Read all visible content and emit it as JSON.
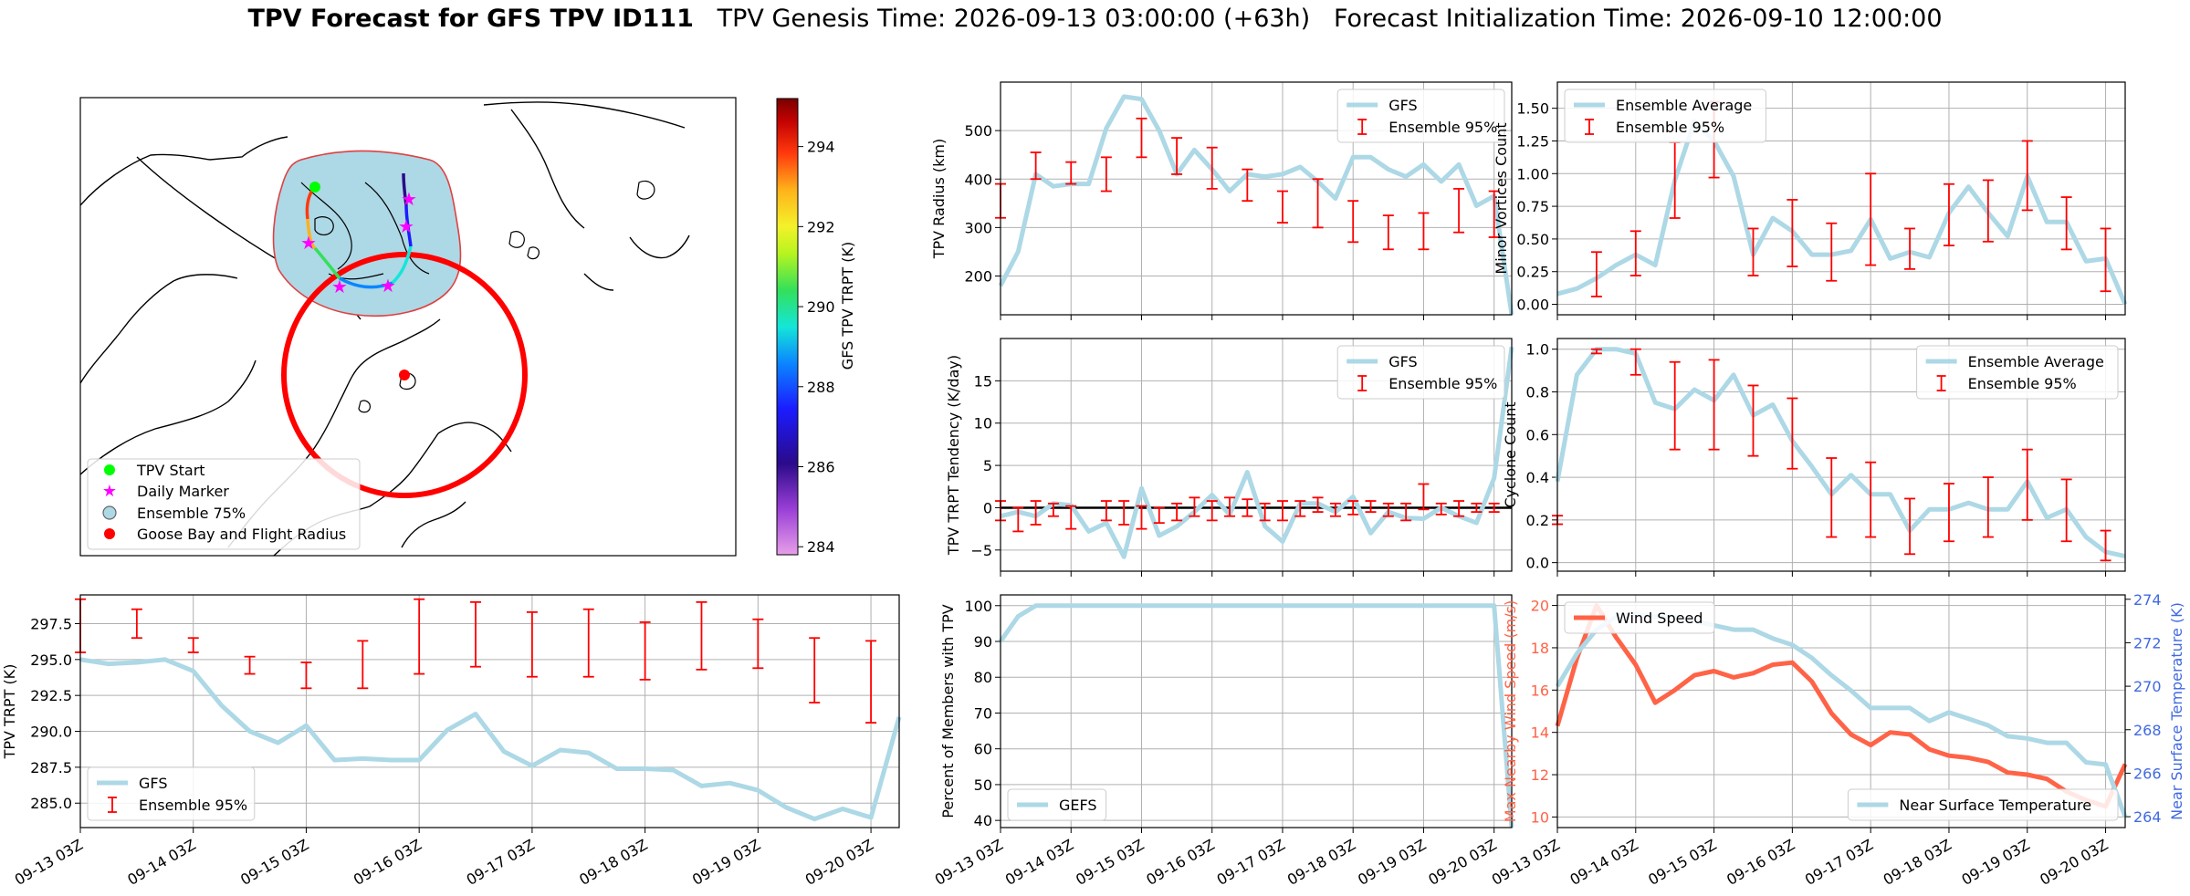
{
  "title": {
    "bold": "TPV Forecast for GFS TPV ID111",
    "genesis": "TPV Genesis Time: 2026-09-13 03:00:00 (+63h)",
    "init": "Forecast Initialization Time: 2026-09-10 12:00:00"
  },
  "colors": {
    "gfs": "#add8e6",
    "err": "#ff0000",
    "wind": "#ff6347",
    "tempAxis": "#4169e1",
    "zero": "#000000"
  },
  "map": {
    "legend": [
      "TPV Start",
      "Daily Marker",
      "Ensemble 75%",
      "Goose Bay and Flight Radius"
    ],
    "colorbar": {
      "label": "GFS TPV TRPT (K)",
      "ticks": [
        "284",
        "286",
        "288",
        "290",
        "292",
        "294"
      ],
      "min": 283.8,
      "max": 295.2,
      "colormap": "gist_ncar-like"
    }
  },
  "time_axis": {
    "tick_labels": [
      "09-13 03Z",
      "09-14 03Z",
      "09-15 03Z",
      "09-16 03Z",
      "09-17 03Z",
      "09-18 03Z",
      "09-19 03Z",
      "09-20 03Z"
    ],
    "step_hours": 6
  },
  "chart_data": [
    {
      "id": "trpt",
      "type": "line",
      "ylabel": "TPV TRPT (K)",
      "ylim": [
        283.3,
        299.5
      ],
      "yticks": [
        "285.0",
        "287.5",
        "290.0",
        "292.5",
        "295.0",
        "297.5"
      ],
      "ytick_values": [
        285,
        287.5,
        290,
        292.5,
        295,
        297.5
      ],
      "legend": [
        "GFS",
        "Ensemble 95%"
      ],
      "legend_loc": "lower left",
      "series": [
        {
          "name": "GFS",
          "values": [
            295.0,
            294.7,
            294.8,
            295.0,
            294.2,
            291.8,
            290.0,
            289.2,
            290.4,
            288.0,
            288.1,
            288.0,
            288.0,
            290.1,
            291.2,
            288.6,
            287.6,
            288.7,
            288.5,
            287.4,
            287.4,
            287.3,
            286.2,
            286.4,
            285.9,
            284.7,
            283.9,
            284.6,
            284.0,
            291.0
          ]
        }
      ],
      "errorbars": [
        [
          0,
          295.5,
          299.2
        ],
        [
          2,
          296.5,
          298.5
        ],
        [
          4,
          295.5,
          296.5
        ],
        [
          6,
          294.0,
          295.2
        ],
        [
          8,
          293.0,
          294.8
        ],
        [
          10,
          293.0,
          296.3
        ],
        [
          12,
          294.0,
          299.2
        ],
        [
          14,
          294.5,
          299.0
        ],
        [
          16,
          293.8,
          298.3
        ],
        [
          18,
          293.8,
          298.5
        ],
        [
          20,
          293.6,
          297.6
        ],
        [
          22,
          294.3,
          299.0
        ],
        [
          24,
          294.4,
          297.8
        ],
        [
          26,
          292.0,
          296.5
        ],
        [
          28,
          290.6,
          296.3
        ]
      ]
    },
    {
      "id": "radius",
      "type": "line",
      "ylabel": "TPV Radius (km)",
      "ylim": [
        120,
        600
      ],
      "yticks": [
        "200",
        "300",
        "400",
        "500"
      ],
      "ytick_values": [
        200,
        300,
        400,
        500
      ],
      "legend": [
        "GFS",
        "Ensemble 95%"
      ],
      "legend_loc": "upper right",
      "series": [
        {
          "name": "GFS",
          "values": [
            180,
            250,
            410,
            385,
            390,
            390,
            505,
            570,
            565,
            500,
            410,
            460,
            420,
            375,
            410,
            405,
            410,
            425,
            395,
            360,
            445,
            445,
            420,
            405,
            430,
            395,
            430,
            345,
            365,
            120
          ]
        }
      ],
      "errorbars": [
        [
          0,
          320,
          390
        ],
        [
          2,
          400,
          455
        ],
        [
          4,
          390,
          435
        ],
        [
          6,
          375,
          445
        ],
        [
          8,
          445,
          525
        ],
        [
          10,
          410,
          485
        ],
        [
          12,
          380,
          465
        ],
        [
          14,
          355,
          420
        ],
        [
          16,
          310,
          375
        ],
        [
          18,
          300,
          400
        ],
        [
          20,
          270,
          355
        ],
        [
          22,
          255,
          325
        ],
        [
          24,
          255,
          330
        ],
        [
          26,
          290,
          380
        ],
        [
          28,
          280,
          375
        ]
      ]
    },
    {
      "id": "minor",
      "type": "line",
      "ylabel": "Minor Vortices Count",
      "ylim": [
        -0.08,
        1.7
      ],
      "yticks": [
        "0.00",
        "0.25",
        "0.50",
        "0.75",
        "1.00",
        "1.25",
        "1.50"
      ],
      "ytick_values": [
        0,
        0.25,
        0.5,
        0.75,
        1.0,
        1.25,
        1.5
      ],
      "legend": [
        "Ensemble Average",
        "Ensemble 95%"
      ],
      "legend_loc": "upper left",
      "series": [
        {
          "name": "Ensemble Average",
          "values": [
            0.08,
            0.12,
            0.2,
            0.3,
            0.38,
            0.3,
            0.95,
            1.4,
            1.25,
            0.98,
            0.38,
            0.66,
            0.56,
            0.38,
            0.38,
            0.41,
            0.65,
            0.35,
            0.4,
            0.36,
            0.7,
            0.9,
            0.7,
            0.52,
            0.98,
            0.63,
            0.63,
            0.33,
            0.35,
            0.0
          ]
        }
      ],
      "errorbars": [
        [
          2,
          0.06,
          0.4
        ],
        [
          4,
          0.22,
          0.56
        ],
        [
          6,
          0.66,
          1.24
        ],
        [
          8,
          0.97,
          1.55
        ],
        [
          10,
          0.22,
          0.58
        ],
        [
          12,
          0.29,
          0.8
        ],
        [
          14,
          0.18,
          0.62
        ],
        [
          16,
          0.3,
          1.0
        ],
        [
          18,
          0.27,
          0.58
        ],
        [
          20,
          0.45,
          0.92
        ],
        [
          22,
          0.48,
          0.95
        ],
        [
          24,
          0.72,
          1.25
        ],
        [
          26,
          0.42,
          0.82
        ],
        [
          28,
          0.1,
          0.58
        ]
      ]
    },
    {
      "id": "tendency",
      "type": "line",
      "ylabel": "TPV TRPT Tendency (K/day)",
      "ylim": [
        -7.5,
        20
      ],
      "yticks": [
        "−5",
        "0",
        "5",
        "10",
        "15"
      ],
      "ytick_values": [
        -5,
        0,
        5,
        10,
        15
      ],
      "legend": [
        "GFS",
        "Ensemble 95%"
      ],
      "legend_loc": "upper right",
      "series": [
        {
          "name": "GFS",
          "values": [
            -1.0,
            -0.5,
            -1.0,
            0.5,
            0.3,
            -2.8,
            -1.8,
            -5.8,
            2.3,
            -3.3,
            -2.2,
            -0.5,
            1.5,
            -0.8,
            4.2,
            -2.2,
            -4.0,
            0.5,
            0.5,
            -0.5,
            1.3,
            -3.0,
            -0.5,
            -1.2,
            -1.3,
            0.0,
            -1.0,
            -1.8,
            3.5,
            19.0
          ]
        }
      ],
      "errorbars": [
        [
          0,
          -1.5,
          0.8
        ],
        [
          1,
          -2.8,
          0.0
        ],
        [
          2,
          -2.0,
          0.8
        ],
        [
          3,
          -1.0,
          0.5
        ],
        [
          4,
          -2.5,
          0.2
        ],
        [
          6,
          -1.5,
          0.8
        ],
        [
          7,
          -2.0,
          0.8
        ],
        [
          8,
          -2.5,
          0.2
        ],
        [
          9,
          -1.8,
          0.0
        ],
        [
          10,
          -1.5,
          0.5
        ],
        [
          11,
          -1.0,
          1.2
        ],
        [
          12,
          -1.5,
          0.8
        ],
        [
          13,
          -1.0,
          1.2
        ],
        [
          14,
          -1.0,
          1.0
        ],
        [
          15,
          -1.5,
          0.5
        ],
        [
          16,
          -1.5,
          0.8
        ],
        [
          17,
          -1.0,
          0.8
        ],
        [
          18,
          -0.5,
          1.2
        ],
        [
          19,
          -1.0,
          0.5
        ],
        [
          20,
          -0.8,
          0.8
        ],
        [
          21,
          -0.5,
          0.8
        ],
        [
          22,
          -1.0,
          0.5
        ],
        [
          23,
          -1.5,
          0.5
        ],
        [
          24,
          -0.2,
          2.8
        ],
        [
          25,
          -0.8,
          0.5
        ],
        [
          26,
          -1.0,
          0.8
        ],
        [
          27,
          -0.5,
          0.5
        ],
        [
          28,
          -0.5,
          0.5
        ]
      ]
    },
    {
      "id": "cyclone",
      "type": "line",
      "ylabel": "Cyclone Count",
      "ylim": [
        -0.04,
        1.05
      ],
      "yticks": [
        "0.0",
        "0.2",
        "0.4",
        "0.6",
        "0.8",
        "1.0"
      ],
      "ytick_values": [
        0,
        0.2,
        0.4,
        0.6,
        0.8,
        1.0
      ],
      "legend": [
        "Ensemble Average",
        "Ensemble 95%"
      ],
      "legend_loc": "upper right",
      "series": [
        {
          "name": "Ensemble Average",
          "values": [
            0.38,
            0.88,
            1.0,
            1.0,
            0.98,
            0.75,
            0.72,
            0.81,
            0.76,
            0.88,
            0.69,
            0.74,
            0.57,
            0.45,
            0.32,
            0.41,
            0.32,
            0.32,
            0.15,
            0.25,
            0.25,
            0.28,
            0.25,
            0.25,
            0.38,
            0.21,
            0.25,
            0.12,
            0.05,
            0.03
          ]
        }
      ],
      "errorbars": [
        [
          0,
          0.18,
          0.22
        ],
        [
          2,
          0.98,
          1.0
        ],
        [
          4,
          0.88,
          1.0
        ],
        [
          6,
          0.53,
          0.94
        ],
        [
          8,
          0.53,
          0.95
        ],
        [
          10,
          0.5,
          0.83
        ],
        [
          12,
          0.44,
          0.77
        ],
        [
          14,
          0.12,
          0.49
        ],
        [
          16,
          0.12,
          0.47
        ],
        [
          18,
          0.04,
          0.3
        ],
        [
          20,
          0.1,
          0.37
        ],
        [
          22,
          0.12,
          0.4
        ],
        [
          24,
          0.2,
          0.53
        ],
        [
          26,
          0.1,
          0.39
        ],
        [
          28,
          0.01,
          0.15
        ]
      ]
    },
    {
      "id": "percent",
      "type": "line",
      "ylabel": "Percent of Members with TPV",
      "ylim": [
        38,
        103
      ],
      "yticks": [
        "40",
        "50",
        "60",
        "70",
        "80",
        "90",
        "100"
      ],
      "ytick_values": [
        40,
        50,
        60,
        70,
        80,
        90,
        100
      ],
      "legend": [
        "GEFS"
      ],
      "legend_loc": "lower left",
      "series": [
        {
          "name": "GEFS",
          "values": [
            90,
            97,
            100,
            100,
            100,
            100,
            100,
            100,
            100,
            100,
            100,
            100,
            100,
            100,
            100,
            100,
            100,
            100,
            100,
            100,
            100,
            100,
            100,
            100,
            100,
            100,
            100,
            100,
            100,
            38
          ]
        }
      ]
    },
    {
      "id": "wind_temp",
      "type": "line",
      "ylabel": "Max Nearby Wind Speed (m/s)",
      "ylim": [
        9.5,
        20.5
      ],
      "yticks": [
        "10",
        "12",
        "14",
        "16",
        "18",
        "20"
      ],
      "ytick_values": [
        10,
        12,
        14,
        16,
        18,
        20
      ],
      "ylabel2": "Near Surface Temperature (K)",
      "ylim2": [
        263.5,
        274.2
      ],
      "yticks2": [
        "264",
        "266",
        "268",
        "270",
        "272",
        "274"
      ],
      "ytick_values2": [
        264,
        266,
        268,
        270,
        272,
        274
      ],
      "legend": [
        "Wind Speed"
      ],
      "legend_loc": "upper left",
      "legend2": [
        "Near Surface Temperature"
      ],
      "legend2_loc": "lower right",
      "series": [
        {
          "name": "Wind Speed",
          "axis": "left",
          "values": [
            14.3,
            17.5,
            20.0,
            18.5,
            17.2,
            15.4,
            16.0,
            16.7,
            16.9,
            16.6,
            16.8,
            17.2,
            17.3,
            16.4,
            14.9,
            13.9,
            13.4,
            14.0,
            13.9,
            13.2,
            12.9,
            12.8,
            12.6,
            12.1,
            12.0,
            11.8,
            11.2,
            10.8,
            10.5,
            12.5
          ]
        },
        {
          "name": "Near Surface Temperature",
          "axis": "right",
          "values": [
            270.0,
            271.5,
            272.6,
            273.2,
            273.3,
            273.2,
            273.2,
            273.0,
            272.8,
            272.6,
            272.6,
            272.2,
            271.9,
            271.3,
            270.5,
            269.8,
            269.0,
            269.0,
            269.0,
            268.4,
            268.8,
            268.5,
            268.2,
            267.7,
            267.6,
            267.4,
            267.4,
            266.5,
            266.4,
            264.0
          ]
        }
      ]
    }
  ]
}
